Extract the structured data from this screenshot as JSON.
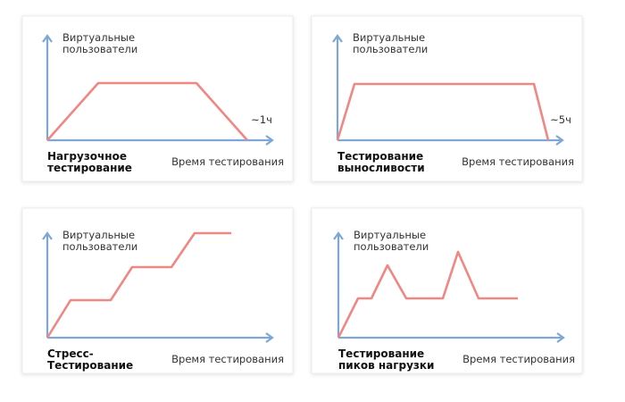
{
  "panels": [
    {
      "y_label": [
        "Виртуальные",
        "пользователи"
      ],
      "title": [
        "Нагрузочное",
        "тестирование"
      ],
      "x_label": "Время тестирования",
      "note": "~1ч"
    },
    {
      "y_label": [
        "Виртуальные",
        "пользователи"
      ],
      "title": [
        "Тестирование",
        "выносливости"
      ],
      "x_label": "Время тестирования",
      "note": "~5ч"
    },
    {
      "y_label": [
        "Виртуальные",
        "пользователи"
      ],
      "title": [
        "Стресс-",
        "Тестирование"
      ],
      "x_label": "Время тестирования"
    },
    {
      "y_label": [
        "Виртуальные",
        "пользователи"
      ],
      "title": [
        "Тестирование",
        "пиков нагрузки"
      ],
      "x_label": "Время тестирования"
    }
  ]
}
